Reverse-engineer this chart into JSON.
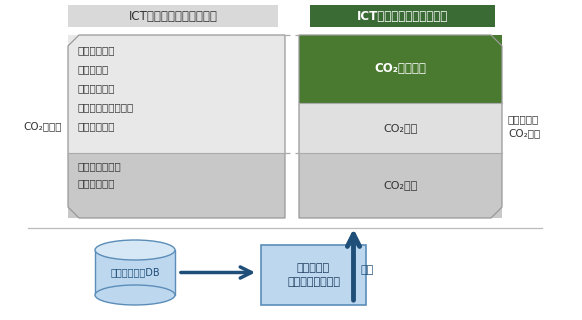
{
  "bg_color": "#ffffff",
  "header_before_text": "ICTソリューション導入前",
  "header_before_bg": "#d9d9d9",
  "header_after_text": "ICTソリューション導入後",
  "header_after_bg": "#3a6b35",
  "header_after_text_color": "#ffffff",
  "left_label": "CO₂排出量",
  "right_label": "トータルで\nCO₂削減",
  "box_before_upper_lines": [
    "モノの消費量",
    "人の移動量",
    "モノの移動量",
    "オフィス・スペース",
    "倉庫スペース"
  ],
  "box_before_lower_lines": [
    "機器電力消費量",
    "データ通信量"
  ],
  "box_before_upper_color": "#e8e8e8",
  "box_before_lower_color": "#c8c8c8",
  "box_after_upper_green_text": "CO₂削減効果",
  "box_after_upper_green_color": "#4a7a30",
  "box_after_mid_text": "CO₂減少",
  "box_after_mid_color": "#e0e0e0",
  "box_after_lower_text": "CO₂増加",
  "box_after_lower_color": "#c8c8c8",
  "db_text": "環境影響要因DB",
  "db_color_body": "#bdd7ee",
  "db_color_top": "#d6e8f5",
  "db_color_border": "#5b8db8",
  "tool_box_text": "評価ツール\n（アルゴリズム）",
  "tool_box_color": "#bdd7ee",
  "tool_box_border": "#5b8db8",
  "arrow_color": "#1f4e79",
  "eval_text": "評価",
  "eval_color": "#1f4e79",
  "separator_color": "#aaaaaa",
  "dashed_line_color": "#aaaaaa",
  "line_color": "#999999"
}
